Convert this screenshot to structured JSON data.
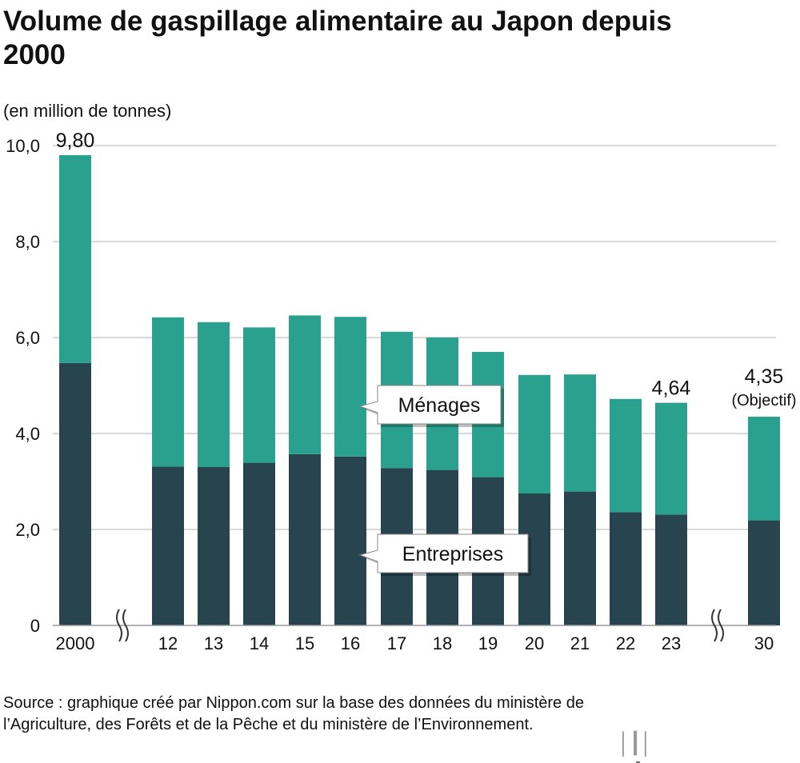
{
  "title": "Volume de gaspillage alimentaire au Japon depuis 2000",
  "unit": "(en million de tonnes)",
  "source": "Source : graphique créé par Nippon.com sur la base des données du ministère de l’Agriculture, des Forêts et de la Pêche et du ministère de l’Environnement.",
  "logo": {
    "name": "nippon",
    "suffix": ".com"
  },
  "chart_data": {
    "type": "bar",
    "stacked": true,
    "title": "Volume de gaspillage alimentaire au Japon depuis 2000",
    "ylabel": "(en million de tonnes)",
    "ylim": [
      0,
      10
    ],
    "yticks": [
      "0",
      "2,0",
      "4,0",
      "6,0",
      "8,0",
      "10,0"
    ],
    "grid": true,
    "axis_breaks": [
      "2000-12",
      "23-30"
    ],
    "categories": [
      "2000",
      "12",
      "13",
      "14",
      "15",
      "16",
      "17",
      "18",
      "19",
      "20",
      "21",
      "22",
      "23",
      "30"
    ],
    "series": [
      {
        "name": "Entreprises",
        "color": "#27444f",
        "values": [
          5.47,
          3.31,
          3.3,
          3.39,
          3.57,
          3.52,
          3.28,
          3.24,
          3.09,
          2.75,
          2.79,
          2.36,
          2.31,
          2.19
        ]
      },
      {
        "name": "Ménages",
        "color": "#2aa08e",
        "values": [
          4.33,
          3.11,
          3.02,
          2.82,
          2.89,
          2.91,
          2.84,
          2.76,
          2.61,
          2.47,
          2.44,
          2.36,
          2.33,
          2.16
        ]
      }
    ],
    "data_labels": [
      {
        "category": "2000",
        "text": "9,80"
      },
      {
        "category": "23",
        "text": "4,64"
      },
      {
        "category": "30",
        "text": "4,35",
        "note": "(Objectif)"
      }
    ]
  }
}
